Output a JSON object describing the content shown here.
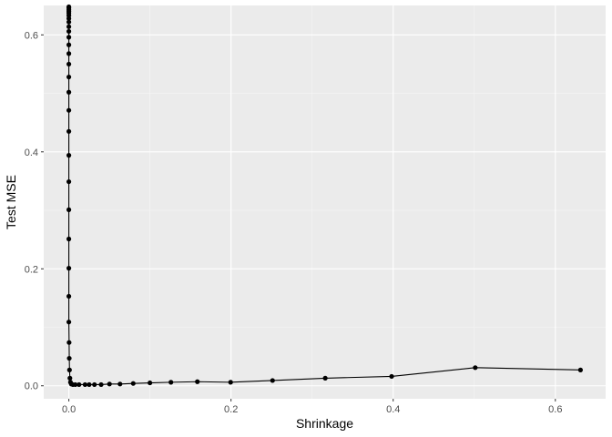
{
  "chart_data": {
    "type": "line",
    "xlabel": "Shrinkage",
    "ylabel": "Test MSE",
    "xlim": [
      -0.031,
      0.662
    ],
    "ylim": [
      -0.0222,
      0.6503
    ],
    "x_ticks": [
      0.0,
      0.2,
      0.4,
      0.6
    ],
    "x_tick_labels": [
      "0.0",
      "0.2",
      "0.4",
      "0.6"
    ],
    "y_ticks": [
      0.0,
      0.2,
      0.4,
      0.6
    ],
    "y_tick_labels": [
      "0.0",
      "0.2",
      "0.4",
      "0.6"
    ],
    "grid": true,
    "colors": {
      "panel_background": "#ebebeb",
      "grid_major": "#ffffff",
      "grid_minor": "#f5f5f5",
      "series": "#000000",
      "tick_label": "#4d4d4d",
      "tick_mark": "#333333"
    },
    "series": [
      {
        "points": [
          [
            0.0,
            0.648
          ],
          [
            0.0,
            0.646
          ],
          [
            0.0,
            0.643
          ],
          [
            0.0,
            0.64
          ],
          [
            0.0,
            0.637
          ],
          [
            0.0,
            0.633
          ],
          [
            0.0,
            0.628
          ],
          [
            0.0,
            0.622
          ],
          [
            0.0,
            0.614
          ],
          [
            0.0,
            0.606
          ],
          [
            0.0,
            0.596
          ],
          [
            0.0,
            0.583
          ],
          [
            0.0,
            0.568
          ],
          [
            0.0,
            0.55
          ],
          [
            0.0,
            0.528
          ],
          [
            0.0,
            0.502
          ],
          [
            0.0,
            0.471
          ],
          [
            0.0,
            0.435
          ],
          [
            0.0,
            0.394
          ],
          [
            0.0,
            0.349
          ],
          [
            0.0,
            0.301
          ],
          [
            0.0,
            0.251
          ],
          [
            0.0,
            0.201
          ],
          [
            0.0,
            0.153
          ],
          [
            0.0,
            0.109
          ],
          [
            0.0003,
            0.074
          ],
          [
            0.0005,
            0.047
          ],
          [
            0.0008,
            0.027
          ],
          [
            0.0013,
            0.013
          ],
          [
            0.002,
            0.006
          ],
          [
            0.003,
            0.003
          ],
          [
            0.005,
            0.002
          ],
          [
            0.008,
            0.002
          ],
          [
            0.0126,
            0.002
          ],
          [
            0.02,
            0.002
          ],
          [
            0.0251,
            0.002
          ],
          [
            0.0316,
            0.002
          ],
          [
            0.0398,
            0.002
          ],
          [
            0.0501,
            0.003
          ],
          [
            0.0631,
            0.003
          ],
          [
            0.0794,
            0.004
          ],
          [
            0.1,
            0.005
          ],
          [
            0.1259,
            0.006
          ],
          [
            0.1585,
            0.007
          ],
          [
            0.1995,
            0.006
          ],
          [
            0.2512,
            0.009
          ],
          [
            0.3162,
            0.013
          ],
          [
            0.3981,
            0.016
          ],
          [
            0.5012,
            0.031
          ],
          [
            0.631,
            0.027
          ]
        ]
      }
    ]
  }
}
